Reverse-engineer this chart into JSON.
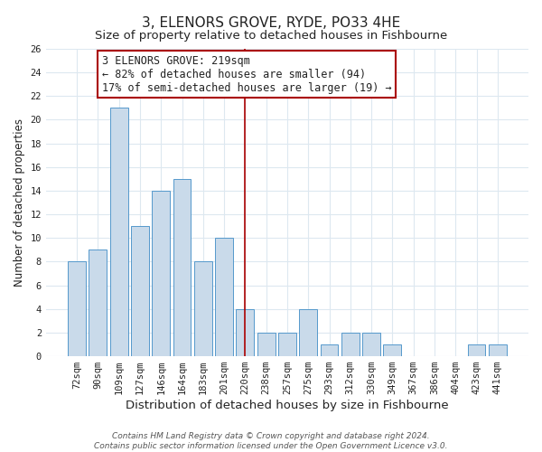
{
  "title": "3, ELENORS GROVE, RYDE, PO33 4HE",
  "subtitle": "Size of property relative to detached houses in Fishbourne",
  "xlabel": "Distribution of detached houses by size in Fishbourne",
  "ylabel": "Number of detached properties",
  "bar_labels": [
    "72sqm",
    "90sqm",
    "109sqm",
    "127sqm",
    "146sqm",
    "164sqm",
    "183sqm",
    "201sqm",
    "220sqm",
    "238sqm",
    "257sqm",
    "275sqm",
    "293sqm",
    "312sqm",
    "330sqm",
    "349sqm",
    "367sqm",
    "386sqm",
    "404sqm",
    "423sqm",
    "441sqm"
  ],
  "bar_values": [
    8,
    9,
    21,
    11,
    14,
    15,
    8,
    10,
    4,
    2,
    2,
    4,
    1,
    2,
    2,
    1,
    0,
    0,
    0,
    1,
    1
  ],
  "bar_color": "#c9daea",
  "bar_edge_color": "#5599cc",
  "highlight_line_index": 8,
  "highlight_line_color": "#aa0000",
  "ylim": [
    0,
    26
  ],
  "yticks": [
    0,
    2,
    4,
    6,
    8,
    10,
    12,
    14,
    16,
    18,
    20,
    22,
    24,
    26
  ],
  "annotation_title": "3 ELENORS GROVE: 219sqm",
  "annotation_line1": "← 82% of detached houses are smaller (94)",
  "annotation_line2": "17% of semi-detached houses are larger (19) →",
  "annotation_box_color": "#ffffff",
  "annotation_box_edge": "#aa0000",
  "footer_line1": "Contains HM Land Registry data © Crown copyright and database right 2024.",
  "footer_line2": "Contains public sector information licensed under the Open Government Licence v3.0.",
  "title_fontsize": 11,
  "subtitle_fontsize": 9.5,
  "xlabel_fontsize": 9.5,
  "ylabel_fontsize": 8.5,
  "tick_fontsize": 7.5,
  "annotation_fontsize": 8.5,
  "footer_fontsize": 6.5,
  "bg_color": "#ffffff",
  "grid_color": "#dde8f0",
  "text_color": "#222222"
}
